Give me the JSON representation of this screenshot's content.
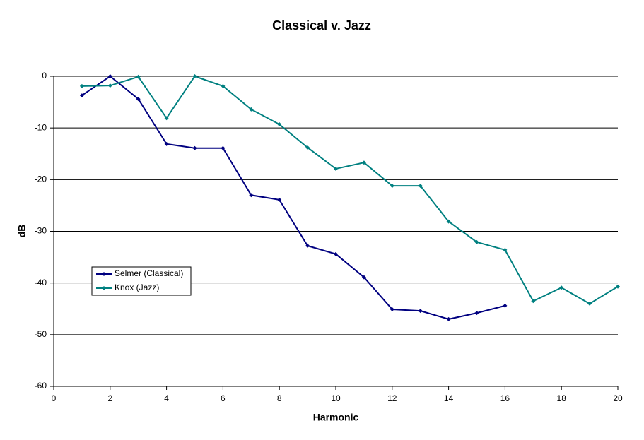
{
  "chart_data": {
    "type": "line",
    "title": "Classical v. Jazz",
    "x_label": "Harmonic",
    "y_label": "dB",
    "x": [
      1,
      2,
      3,
      4,
      5,
      6,
      7,
      8,
      9,
      10,
      11,
      12,
      13,
      14,
      15,
      16,
      17,
      18,
      19,
      20
    ],
    "series": [
      {
        "name": "Selmer (Classical)",
        "color": "#000080",
        "values": [
          -3.7,
          0,
          -4.4,
          -13.1,
          -13.9,
          -13.9,
          -23.0,
          -23.9,
          -32.8,
          -34.4,
          -38.9,
          -45.1,
          -45.4,
          -47.0,
          -45.8,
          -44.4,
          null,
          null,
          null,
          null
        ]
      },
      {
        "name": "Knox (Jazz)",
        "color": "#008080",
        "values": [
          -1.9,
          -1.8,
          -0.1,
          -8.1,
          0,
          -1.9,
          -6.4,
          -9.3,
          -13.8,
          -17.9,
          -16.7,
          -21.2,
          -21.2,
          -28.1,
          -32.1,
          -33.6,
          -43.5,
          -40.9,
          -44.0,
          -40.7
        ]
      }
    ],
    "xlim": [
      0,
      20
    ],
    "xticks": [
      0,
      2,
      4,
      6,
      8,
      10,
      12,
      14,
      16,
      18,
      20
    ],
    "ylim": [
      -60,
      0
    ],
    "yticks": [
      -60,
      -50,
      -40,
      -30,
      -20,
      -10,
      0
    ],
    "grid": true
  }
}
